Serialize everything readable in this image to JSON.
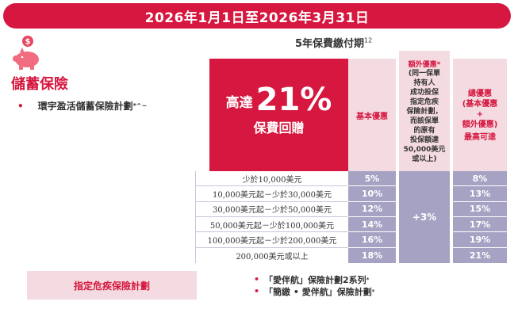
{
  "banner": {
    "period": "2026年1月1日至2026年3月31日"
  },
  "category": {
    "icon": "piggy-bank-dollar-icon",
    "title": "儲蓄保險",
    "plan_name": "環宇盈活儲蓄保險計劃",
    "plan_mark": "*^~"
  },
  "payment_term": {
    "label": "5年保費繳付期",
    "footnote": "12"
  },
  "headline": {
    "prefix": "高達",
    "value": "21%",
    "subtitle": "保費回贈"
  },
  "columns": {
    "basic": "基本優惠",
    "extra_title": "額外優惠*",
    "extra_condition": "(同一保單\n持有人\n成功投保\n指定危疾\n保險計劃，\n而該保單\n的原有\n投保額達\n50,000美元\n或以上)",
    "total_title": "總優惠\n(基本優惠\n+\n額外優惠)",
    "total_max": "最高可達"
  },
  "tiers": [
    {
      "range": "少於10,000美元",
      "basic": "5%",
      "total": "8%"
    },
    {
      "range": "10,000美元起－少於30,000美元",
      "basic": "10%",
      "total": "13%"
    },
    {
      "range": "30,000美元起－少於50,000美元",
      "basic": "12%",
      "total": "15%"
    },
    {
      "range": "50,000美元起－少於100,000美元",
      "basic": "14%",
      "total": "17%"
    },
    {
      "range": "100,000美元起－少於200,000美元",
      "basic": "16%",
      "total": "19%"
    },
    {
      "range": "200,000美元或以上",
      "basic": "18%",
      "total": "21%"
    }
  ],
  "extra_value": "+3%",
  "critical_illness": {
    "label": "指定危疾保險計劃",
    "plans": [
      {
        "name": "「愛伴航」保險計劃2系列",
        "mark": "*"
      },
      {
        "name": "「簡繳 • 愛伴航」保險計劃",
        "mark": "*"
      }
    ]
  },
  "colors": {
    "brand_red": "#d6173f",
    "pink": "#f4dbe1",
    "lavender": "#a6a2c3"
  }
}
